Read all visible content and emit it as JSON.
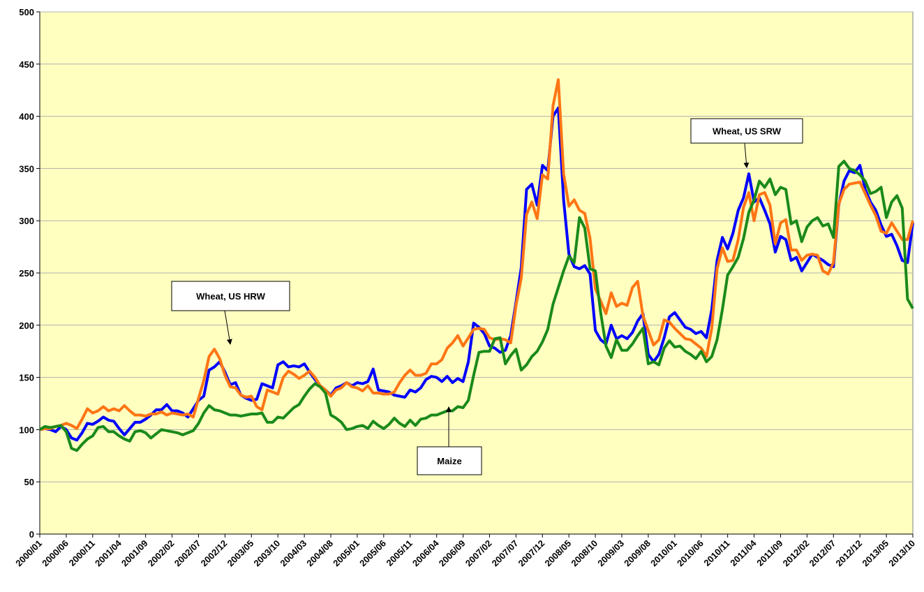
{
  "chart_data": {
    "type": "line",
    "categories": [
      "2000/01",
      null,
      null,
      null,
      null,
      "2000/06",
      null,
      null,
      null,
      null,
      "2000/11",
      null,
      null,
      null,
      null,
      "2001/04",
      null,
      null,
      null,
      null,
      "2001/09",
      null,
      null,
      null,
      null,
      "2002/02",
      null,
      null,
      null,
      null,
      "2002/07",
      null,
      null,
      null,
      null,
      "2002/12",
      null,
      null,
      null,
      null,
      "2003/05",
      null,
      null,
      null,
      null,
      "2003/10",
      null,
      null,
      null,
      null,
      "2004/03",
      null,
      null,
      null,
      null,
      "2004/08",
      null,
      null,
      null,
      null,
      "2005/01",
      null,
      null,
      null,
      null,
      "2005/06",
      null,
      null,
      null,
      null,
      "2005/11",
      null,
      null,
      null,
      null,
      "2006/04",
      null,
      null,
      null,
      null,
      "2006/09",
      null,
      null,
      null,
      null,
      "2007/02",
      null,
      null,
      null,
      null,
      "2007/07",
      null,
      null,
      null,
      null,
      "2007/12",
      null,
      null,
      null,
      null,
      "2008/05",
      null,
      null,
      null,
      null,
      "2008/10",
      null,
      null,
      null,
      null,
      "2009/03",
      null,
      null,
      null,
      null,
      "2009/08",
      null,
      null,
      null,
      null,
      "2010/01",
      null,
      null,
      null,
      null,
      "2010/06",
      null,
      null,
      null,
      null,
      "2010/11",
      null,
      null,
      null,
      null,
      "2011/04",
      null,
      null,
      null,
      null,
      "2011/09",
      null,
      null,
      null,
      null,
      "2012/02",
      null,
      null,
      null,
      null,
      "2012/07",
      null,
      null,
      null,
      null,
      "2012/12",
      null,
      null,
      null,
      null,
      "2013/05",
      null,
      null,
      null,
      null,
      "2013/10"
    ],
    "series": [
      {
        "color": "#0000ff",
        "values": [
          100,
          101,
          100,
          98,
          103,
          100,
          92,
          90,
          97,
          106,
          105,
          108,
          112,
          109,
          108,
          101,
          95,
          101,
          107,
          107,
          110,
          114,
          119,
          119,
          124,
          118,
          118,
          116,
          112,
          120,
          128,
          132,
          157,
          160,
          165,
          155,
          143,
          145,
          133,
          130,
          128,
          129,
          144,
          142,
          140,
          162,
          165,
          160,
          161,
          160,
          163,
          155,
          148,
          142,
          138,
          133,
          140,
          142,
          145,
          142,
          145,
          144,
          146,
          158,
          138,
          137,
          136,
          133,
          132,
          131,
          138,
          136,
          140,
          148,
          151,
          150,
          146,
          151,
          145,
          149,
          146,
          165,
          202,
          198,
          192,
          180,
          178,
          174,
          176,
          190,
          222,
          255,
          330,
          335,
          315,
          353,
          348,
          400,
          408,
          320,
          268,
          256,
          254,
          257,
          249,
          195,
          186,
          182,
          200,
          187,
          190,
          187,
          193,
          204,
          211,
          172,
          165,
          172,
          188,
          208,
          212,
          205,
          198,
          196,
          192,
          194,
          188,
          215,
          262,
          284,
          273,
          288,
          310,
          322,
          345,
          318,
          322,
          310,
          297,
          270,
          285,
          282,
          262,
          265,
          252,
          260,
          268,
          265,
          262,
          258,
          256,
          315,
          338,
          348,
          346,
          353,
          330,
          318,
          310,
          296,
          285,
          287,
          276,
          262,
          260,
          298
        ]
      },
      {
        "color": "#ff7514",
        "values": [
          100,
          101,
          101,
          103,
          104,
          106,
          104,
          101,
          110,
          120,
          116,
          118,
          122,
          118,
          120,
          118,
          123,
          118,
          114,
          114,
          113,
          115,
          115,
          117,
          114,
          116,
          115,
          114,
          115,
          112,
          130,
          147,
          170,
          177,
          168,
          152,
          141,
          140,
          133,
          131,
          132,
          122,
          119,
          138,
          136,
          134,
          150,
          156,
          153,
          149,
          152,
          156,
          150,
          142,
          138,
          132,
          138,
          140,
          145,
          141,
          140,
          137,
          142,
          135,
          135,
          134,
          134,
          136,
          145,
          152,
          157,
          152,
          152,
          154,
          163,
          163,
          167,
          178,
          183,
          190,
          180,
          188,
          196,
          197,
          196,
          188,
          186,
          187,
          186,
          183,
          219,
          245,
          306,
          318,
          302,
          344,
          340,
          410,
          435,
          345,
          314,
          320,
          310,
          307,
          283,
          235,
          223,
          211,
          231,
          218,
          221,
          219,
          236,
          242,
          209,
          195,
          181,
          186,
          205,
          203,
          197,
          192,
          187,
          186,
          182,
          178,
          170,
          197,
          254,
          274,
          261,
          262,
          282,
          313,
          327,
          300,
          325,
          327,
          315,
          278,
          298,
          301,
          272,
          272,
          262,
          267,
          268,
          267,
          252,
          249,
          260,
          316,
          330,
          335,
          336,
          337,
          326,
          315,
          305,
          290,
          288,
          298,
          290,
          282,
          282,
          300
        ]
      },
      {
        "color": "#1a8a1a",
        "values": [
          100,
          103,
          102,
          103,
          104,
          98,
          82,
          80,
          86,
          91,
          94,
          102,
          103,
          98,
          98,
          94,
          91,
          89,
          98,
          99,
          97,
          92,
          96,
          100,
          99,
          98,
          97,
          95,
          97,
          99,
          106,
          116,
          123,
          119,
          118,
          116,
          114,
          114,
          113,
          114,
          115,
          115,
          116,
          107,
          107,
          112,
          111,
          116,
          121,
          124,
          132,
          139,
          144,
          141,
          135,
          114,
          111,
          107,
          100,
          101,
          103,
          104,
          101,
          108,
          104,
          101,
          105,
          111,
          106,
          103,
          109,
          104,
          110,
          111,
          114,
          114,
          116,
          118,
          118,
          122,
          121,
          128,
          152,
          174,
          175,
          175,
          187,
          188,
          163,
          171,
          177,
          157,
          162,
          170,
          175,
          184,
          196,
          220,
          236,
          252,
          266,
          260,
          303,
          293,
          254,
          252,
          212,
          180,
          169,
          186,
          176,
          176,
          182,
          190,
          197,
          163,
          165,
          162,
          178,
          185,
          179,
          180,
          175,
          172,
          168,
          175,
          165,
          170,
          186,
          215,
          248,
          256,
          265,
          283,
          308,
          320,
          338,
          332,
          340,
          325,
          332,
          330,
          297,
          300,
          280,
          294,
          300,
          303,
          295,
          297,
          284,
          352,
          357,
          350,
          348,
          344,
          338,
          326,
          328,
          332,
          303,
          318,
          324,
          312,
          225,
          216
        ]
      }
    ],
    "annotations": [
      "Wheat, US HRW",
      "Wheat, US SRW",
      "Maize"
    ],
    "ylim": [
      0,
      500
    ],
    "yticks": [
      0,
      50,
      100,
      150,
      200,
      250,
      300,
      350,
      400,
      450,
      500
    ],
    "grid": true,
    "plot_background": "#ffffc0"
  }
}
